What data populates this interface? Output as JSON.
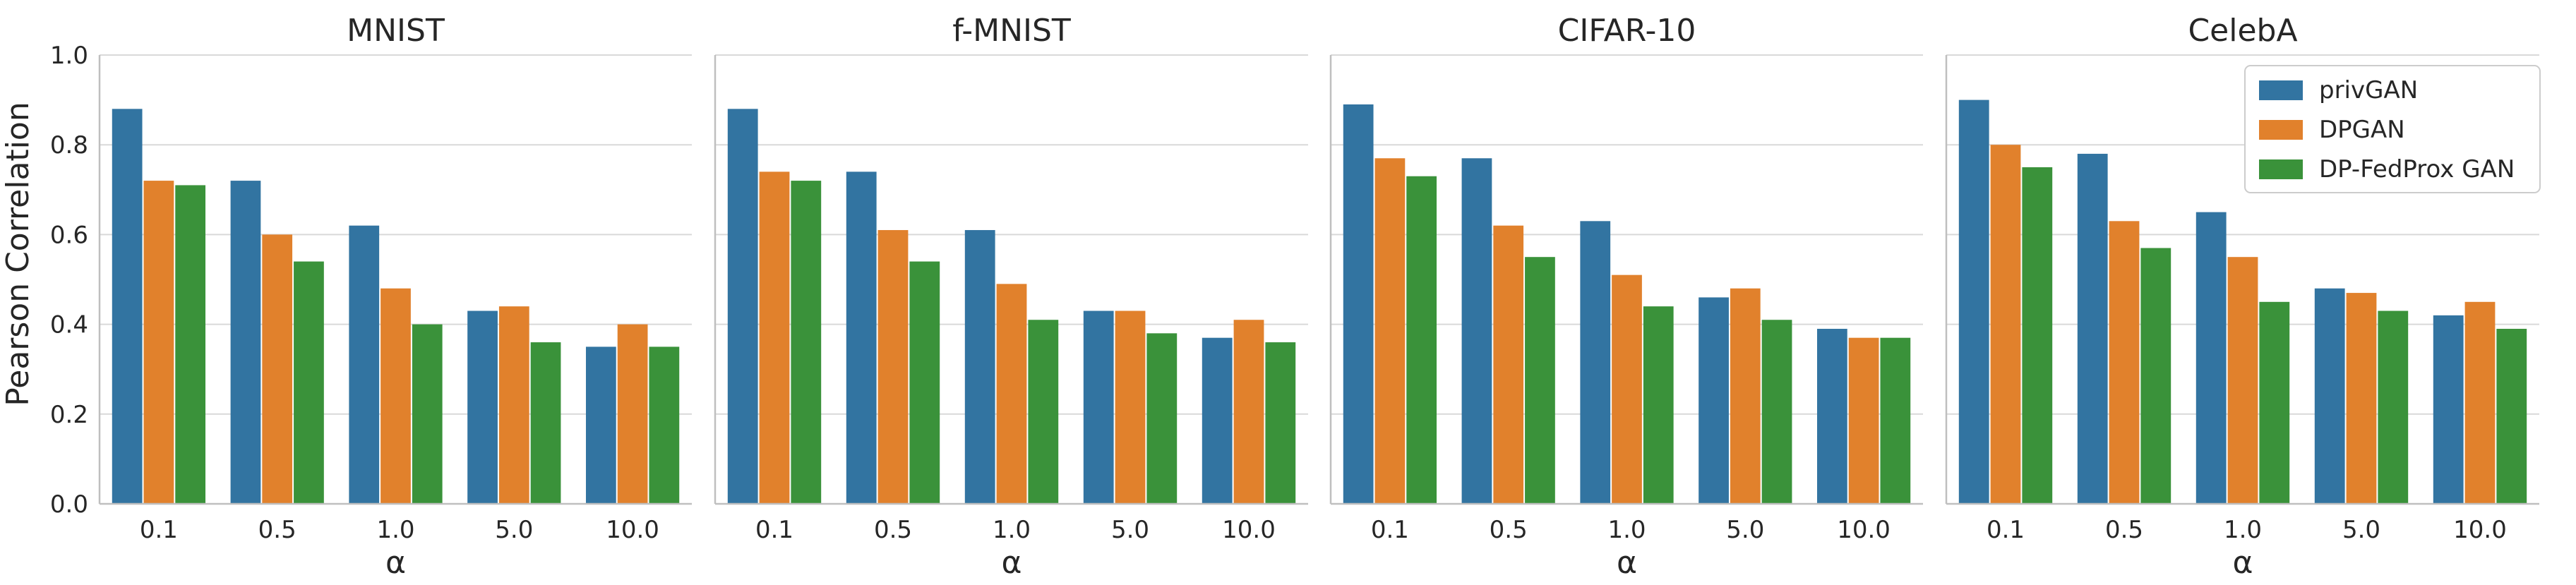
{
  "chart_data": [
    {
      "type": "bar",
      "title": "MNIST",
      "xlabel": "α",
      "ylabel": "Pearson Correlation",
      "categories": [
        "0.1",
        "0.5",
        "1.0",
        "5.0",
        "10.0"
      ],
      "series": [
        {
          "name": "privGAN",
          "values": [
            0.88,
            0.72,
            0.62,
            0.43,
            0.35
          ]
        },
        {
          "name": "DPGAN",
          "values": [
            0.72,
            0.6,
            0.48,
            0.44,
            0.4
          ]
        },
        {
          "name": "DP-FedProx GAN",
          "values": [
            0.71,
            0.54,
            0.4,
            0.36,
            0.35
          ]
        }
      ],
      "ylim": [
        0,
        1.0
      ],
      "yticks": [
        "0.0",
        "0.2",
        "0.4",
        "0.6",
        "0.8",
        "1.0"
      ],
      "grid": true
    },
    {
      "type": "bar",
      "title": "f-MNIST",
      "xlabel": "α",
      "ylabel": "",
      "categories": [
        "0.1",
        "0.5",
        "1.0",
        "5.0",
        "10.0"
      ],
      "series": [
        {
          "name": "privGAN",
          "values": [
            0.88,
            0.74,
            0.61,
            0.43,
            0.37
          ]
        },
        {
          "name": "DPGAN",
          "values": [
            0.74,
            0.61,
            0.49,
            0.43,
            0.41
          ]
        },
        {
          "name": "DP-FedProx GAN",
          "values": [
            0.72,
            0.54,
            0.41,
            0.38,
            0.36
          ]
        }
      ],
      "ylim": [
        0,
        1.0
      ],
      "grid": true
    },
    {
      "type": "bar",
      "title": "CIFAR-10",
      "xlabel": "α",
      "ylabel": "",
      "categories": [
        "0.1",
        "0.5",
        "1.0",
        "5.0",
        "10.0"
      ],
      "series": [
        {
          "name": "privGAN",
          "values": [
            0.89,
            0.77,
            0.63,
            0.46,
            0.39
          ]
        },
        {
          "name": "DPGAN",
          "values": [
            0.77,
            0.62,
            0.51,
            0.48,
            0.37
          ]
        },
        {
          "name": "DP-FedProx GAN",
          "values": [
            0.73,
            0.55,
            0.44,
            0.41,
            0.37
          ]
        }
      ],
      "ylim": [
        0,
        1.0
      ],
      "grid": true
    },
    {
      "type": "bar",
      "title": "CelebA",
      "xlabel": "α",
      "ylabel": "",
      "categories": [
        "0.1",
        "0.5",
        "1.0",
        "5.0",
        "10.0"
      ],
      "series": [
        {
          "name": "privGAN",
          "values": [
            0.9,
            0.78,
            0.65,
            0.48,
            0.42
          ]
        },
        {
          "name": "DPGAN",
          "values": [
            0.8,
            0.63,
            0.55,
            0.47,
            0.45
          ]
        },
        {
          "name": "DP-FedProx GAN",
          "values": [
            0.75,
            0.57,
            0.45,
            0.43,
            0.39
          ]
        }
      ],
      "ylim": [
        0,
        1.0
      ],
      "grid": true,
      "legend": "top-right"
    }
  ],
  "legend": {
    "placement": "top-right",
    "entries": [
      {
        "name": "privGAN",
        "color": "#3274a1"
      },
      {
        "name": "DPGAN",
        "color": "#e1812c"
      },
      {
        "name": "DP-FedProx GAN",
        "color": "#3a923a"
      }
    ]
  },
  "colors": {
    "privGAN": "#3274a1",
    "DPGAN": "#e1812c",
    "DP-FedProx GAN": "#3a923a"
  }
}
